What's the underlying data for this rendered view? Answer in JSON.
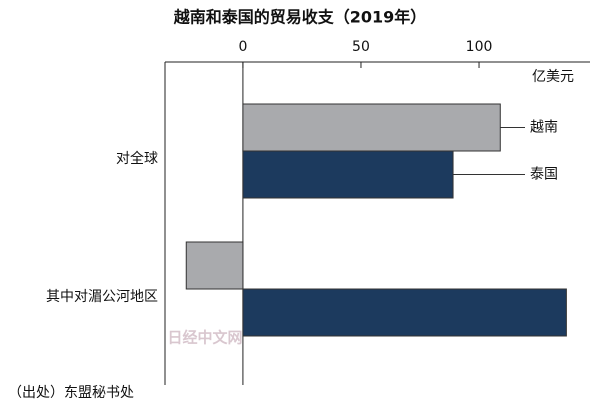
{
  "chart_data": {
    "type": "hbar",
    "title": "越南和泰国的贸易收支（2019年）",
    "unit_label": "亿美元",
    "source": "（出处）东盟秘书处",
    "watermark": "日经中文网",
    "categories": [
      "对全球",
      "其中对湄公河地区"
    ],
    "series": [
      {
        "name": "越南",
        "color": "#a9aaad",
        "values": [
          109,
          -24
        ]
      },
      {
        "name": "泰国",
        "color": "#1c3a5e",
        "values": [
          89,
          137
        ]
      }
    ],
    "xlim": [
      -33,
      147
    ],
    "xticks": [
      0,
      50,
      100
    ]
  }
}
